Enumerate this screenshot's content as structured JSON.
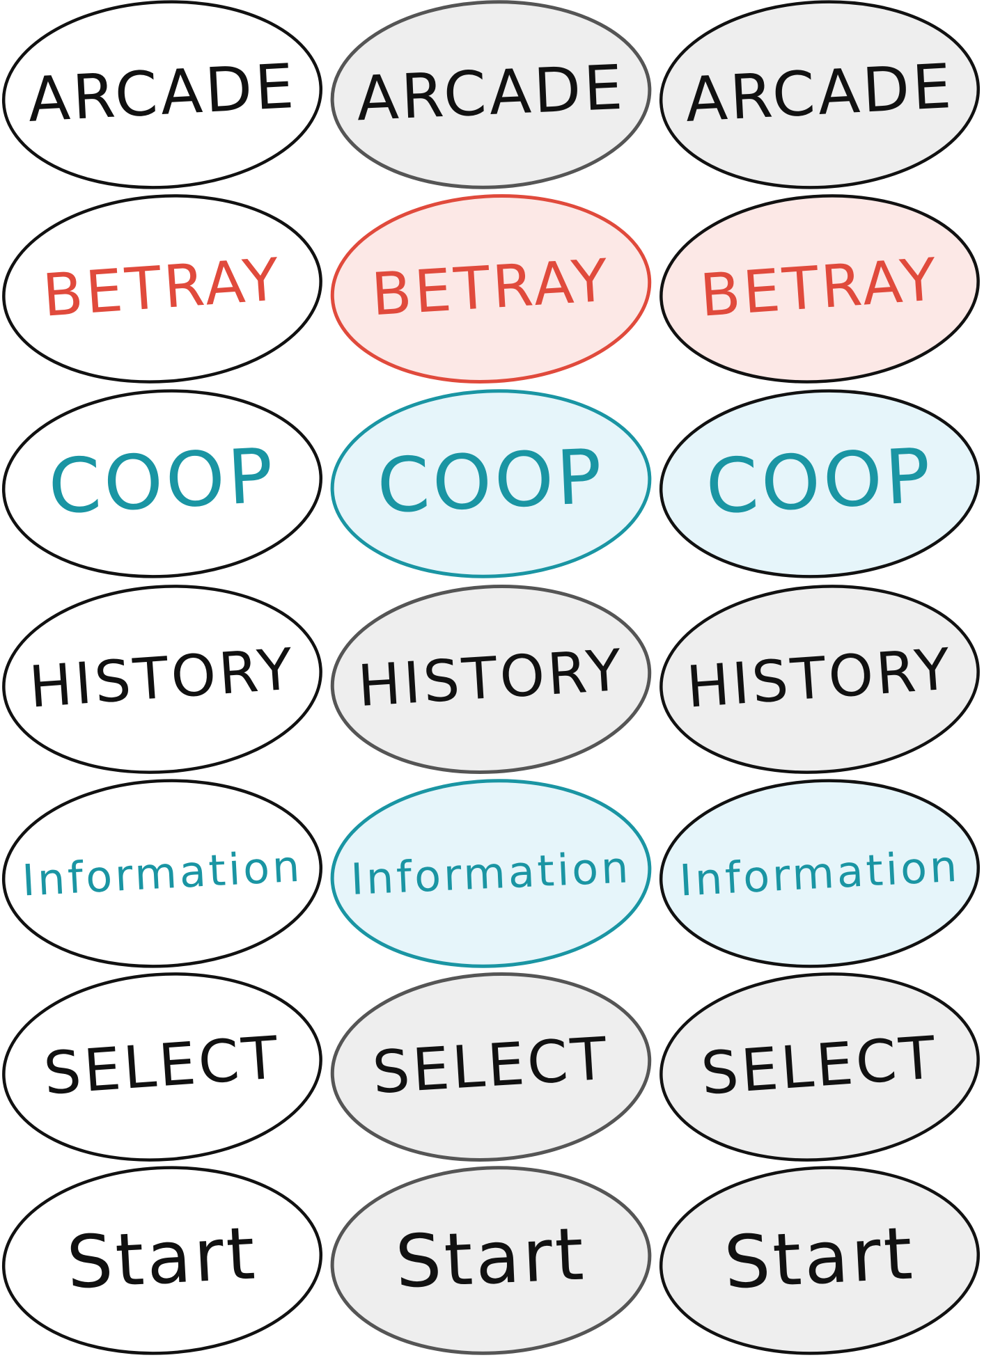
{
  "sheet": {
    "title": "",
    "rows": [
      {
        "label": "ARCADE",
        "theme": "black"
      },
      {
        "label": "BETRAY",
        "theme": "red"
      },
      {
        "label": "COOP",
        "theme": "teal"
      },
      {
        "label": "HISTORY",
        "theme": "black"
      },
      {
        "label": "Information",
        "theme": "teal"
      },
      {
        "label": "SELECT",
        "theme": "black"
      },
      {
        "label": "Start",
        "theme": "black"
      }
    ],
    "states": [
      "normal",
      "hover",
      "pressed"
    ]
  },
  "themes": {
    "black": {
      "text": "#111111",
      "normal_stroke": "#111111",
      "normal_fill": "#ffffff",
      "hover_stroke": "#555555",
      "hover_fill": "#eeeeee",
      "pressed_stroke": "#111111",
      "pressed_fill": "#eeeeee"
    },
    "red": {
      "text": "#e04a3c",
      "normal_stroke": "#111111",
      "normal_fill": "#ffffff",
      "hover_stroke": "#e04a3c",
      "hover_fill": "#fce8e6",
      "pressed_stroke": "#111111",
      "pressed_fill": "#fce8e6"
    },
    "teal": {
      "text": "#1a95a3",
      "normal_stroke": "#111111",
      "normal_fill": "#ffffff",
      "hover_stroke": "#1a95a3",
      "hover_fill": "#e6f5fa",
      "pressed_stroke": "#111111",
      "pressed_fill": "#e6f5fa"
    }
  }
}
